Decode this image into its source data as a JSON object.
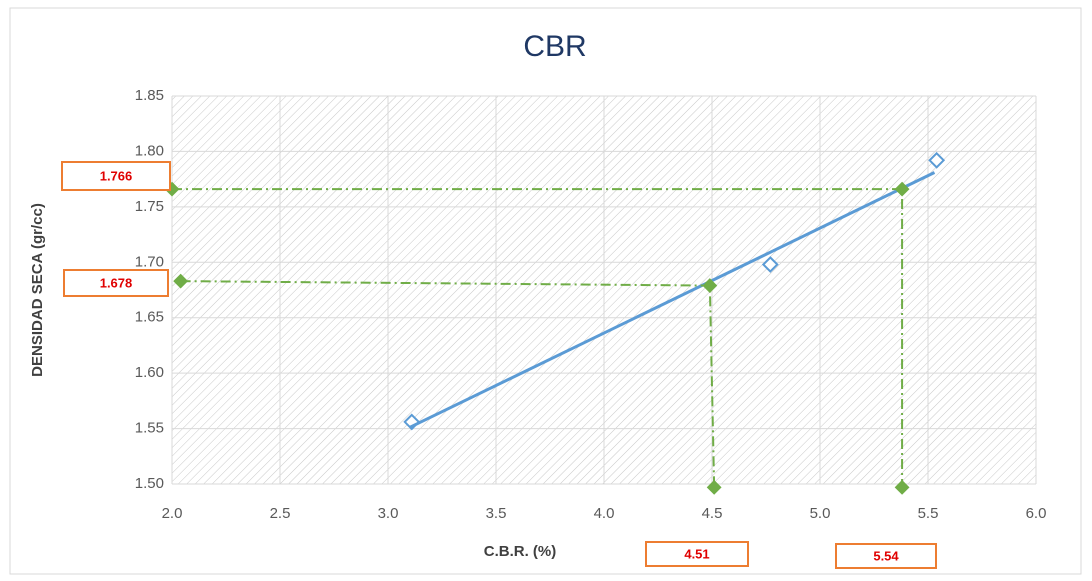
{
  "chart_data": {
    "type": "scatter",
    "title": "CBR",
    "x_label": "C.B.R. (%)",
    "y_label": "DENSIDAD SECA (gr/cc)",
    "xlim": [
      2.0,
      6.0
    ],
    "xticks": [
      {
        "value": 2,
        "label": "2.0"
      },
      2.5,
      {
        "value": 3,
        "label": "3.0"
      },
      3.5,
      {
        "value": 4,
        "label": "4.0"
      },
      4.5,
      {
        "value": 5,
        "label": "5.0"
      },
      5.5,
      {
        "value": 6,
        "label": "6.0"
      }
    ],
    "ylim": [
      1.5,
      1.85
    ],
    "yticks": [
      {
        "value": 1.5,
        "label": "1.50"
      },
      1.55,
      {
        "value": 1.6,
        "label": "1.60"
      },
      1.65,
      {
        "value": 1.7,
        "label": "1.70"
      },
      1.75,
      {
        "value": 1.8,
        "label": "1.80"
      },
      1.85
    ],
    "grid": true,
    "series": [
      {
        "style": "open-diamond",
        "color": "#5b9bd5",
        "x": [
          3.11,
          4.77,
          5.54
        ],
        "values": [
          1.556,
          1.698,
          1.792
        ]
      },
      {
        "style": "line",
        "color": "#5b9bd5",
        "x": [
          3.1,
          5.53
        ],
        "values": [
          1.551,
          1.781
        ]
      },
      {
        "style": "dashdot-diamond",
        "color": "#70ad47",
        "x": [
          2.0,
          5.38,
          5.38
        ],
        "values": [
          1.766,
          1.766,
          1.497
        ]
      },
      {
        "style": "dashdot-diamond",
        "color": "#70ad47",
        "x": [
          2.04,
          4.49,
          4.51
        ],
        "values": [
          1.683,
          1.679,
          1.497
        ]
      }
    ],
    "annotations": [
      "1.766",
      "1.678",
      "4.51",
      "5.54"
    ]
  }
}
